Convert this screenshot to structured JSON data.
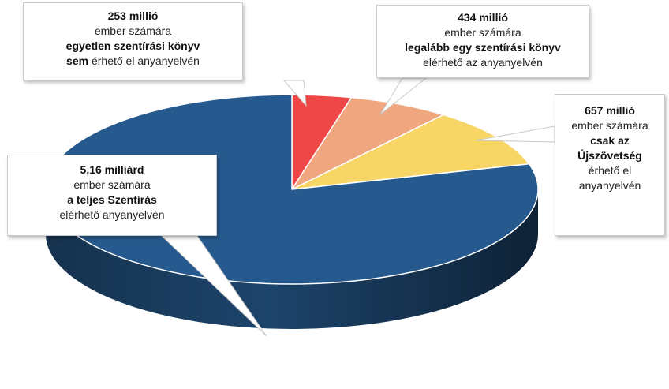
{
  "chart_data": {
    "type": "pie",
    "style": "3d-exploded",
    "unit": "ember",
    "slices": [
      {
        "label": "253 millió",
        "value": 253000000,
        "color": "#ef4747"
      },
      {
        "label": "434 millió",
        "value": 434000000,
        "color": "#f0a67f"
      },
      {
        "label": "657 millió",
        "value": 657000000,
        "color": "#f8d665"
      },
      {
        "label": "5,16 milliárd",
        "value": 5160000000,
        "color": "#265a8e"
      }
    ],
    "annotations": [
      {
        "id": "red",
        "line1": "253 millió",
        "line2": "ember számára",
        "line3": "egyetlen szentírási könyv",
        "line4_bold": "sem",
        "line4_rest": " érhető el anyanyelvén"
      },
      {
        "id": "peach",
        "line1": "434 millió",
        "line2": "ember számára",
        "line3": "legalább egy szentírási könyv",
        "line4": "elérhető az anyanyelvén"
      },
      {
        "id": "yellow",
        "line1": "657 millió",
        "line2": "ember számára",
        "line3": "csak az",
        "line4": "Újszövetség",
        "line5": "érhető el",
        "line6": "anyanyelvén"
      },
      {
        "id": "blue",
        "line1": "5,16 milliárd",
        "line2": "ember számára",
        "line3": "a teljes Szentírás",
        "line4": "elérhető anyanyelvén"
      }
    ]
  }
}
